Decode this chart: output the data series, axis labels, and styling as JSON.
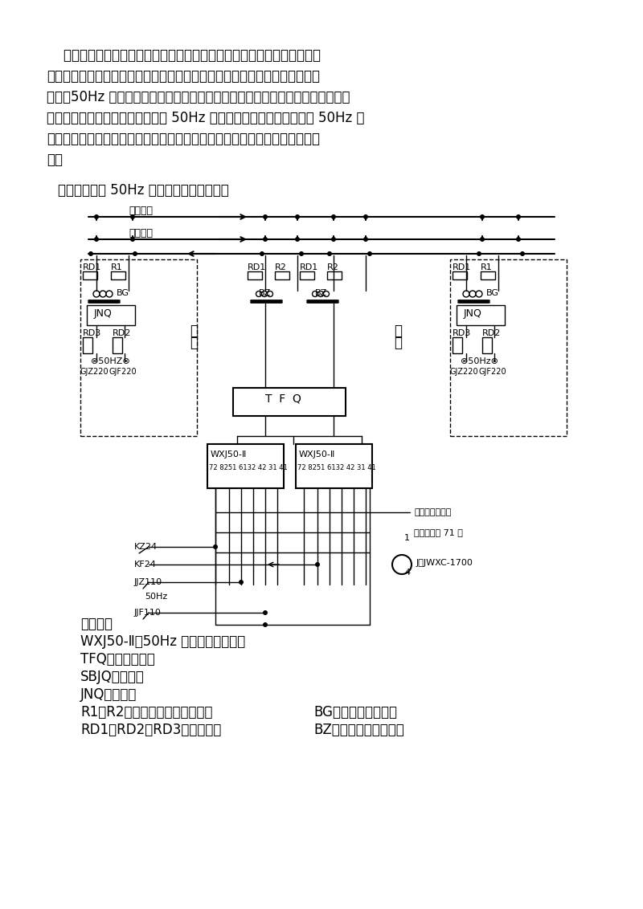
{
  "bg_color": "#ffffff",
  "paragraph1": "    城市铁路、地铁工程车辆段内的列车无机车信号显示，因此其轨道电路的功能仅为列车占用检查，由于其电力机车一般为直流牵引，且牵引回流为单条钢轨，50Hz 交流连续式轨道电路需加设滤波器防护，滤波器故障不能保证安全，故轨道电路采用单轨条回流方式的 50Hz 相敏轨道电路。现将单轨条式 50Hz 相敏轨道电路的基本概况做一介绍，重点介绍室内设备的结构、特点、原理、作用。",
  "section_title": "一、单轨条式 50Hz 相敏轨道电路原理图。",
  "equipment_title": "设备构成",
  "equipment_items": [
    "WXJ50-Ⅱ：50Hz 微电子相敏接收器",
    "TFQ：调相防雷器",
    "SBJQ：报警器",
    "JNQ：节能器"
  ],
  "equipment_items2_left": [
    "R1、R2：送、受电端限流电阻；",
    "RD1、RD2、RD3：容断器；"
  ],
  "equipment_items2_right": [
    "BG：送端电源变压器",
    "BZ：受电端中继变压器"
  ],
  "font_size_body": 11,
  "font_size_section": 11,
  "font_size_equip": 11
}
